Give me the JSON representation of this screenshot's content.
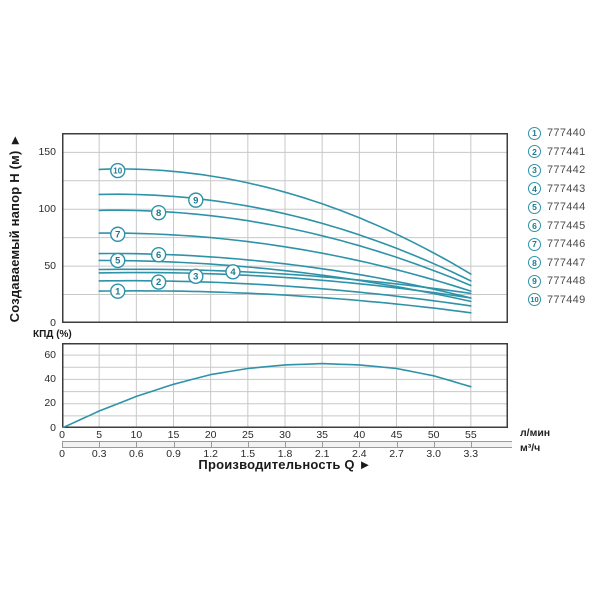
{
  "labels": {
    "head_axis": "Создаваемый напор H (м) ►",
    "kpd_axis": "КПД (%)",
    "q_axis": "Производительность Q ►",
    "unit_lmin": "л/мин",
    "unit_m3h": "м³/ч"
  },
  "colors": {
    "curve": "#2e93a8",
    "grid": "#c8c8c8",
    "border": "#3d3d3d",
    "legend_circle": "#2e93a8",
    "legend_number": "#1d7a8e",
    "legend_text": "#4a4a4a"
  },
  "legend": {
    "items": [
      {
        "num": "1",
        "part": "777440"
      },
      {
        "num": "2",
        "part": "777441"
      },
      {
        "num": "3",
        "part": "777442"
      },
      {
        "num": "4",
        "part": "777443"
      },
      {
        "num": "5",
        "part": "777444"
      },
      {
        "num": "6",
        "part": "777445"
      },
      {
        "num": "7",
        "part": "777446"
      },
      {
        "num": "8",
        "part": "777447"
      },
      {
        "num": "9",
        "part": "777448"
      },
      {
        "num": "10",
        "part": "777449"
      }
    ]
  },
  "chart_data": [
    {
      "type": "line",
      "title": "Pump head curves H(Q)",
      "ylabel": "Создаваемый напор H (м)",
      "xlabel": "Производительность Q",
      "xlim_lmin": [
        0,
        60
      ],
      "ylim": [
        0,
        167
      ],
      "grid": true,
      "y_ticks": [
        "0",
        "50",
        "100",
        "150"
      ],
      "y_grid_step": 25,
      "x_ticks_lmin": [
        "0",
        "5",
        "10",
        "15",
        "20",
        "25",
        "30",
        "35",
        "40",
        "45",
        "50",
        "55"
      ],
      "x_ticks_m3h": [
        "0",
        "0.3",
        "0.6",
        "0.9",
        "1.2",
        "1.5",
        "1.8",
        "2.1",
        "2.4",
        "2.7",
        "3.0",
        "3.3"
      ],
      "series_x_lmin": [
        5,
        30,
        55
      ],
      "series": [
        {
          "curve": "1",
          "part": "777440",
          "h": [
            28,
            24.5,
            9
          ],
          "label_at": [
            7.5,
            28
          ]
        },
        {
          "curve": "2",
          "part": "777441",
          "h": [
            37,
            32.5,
            15
          ],
          "label_at": [
            13,
            36
          ]
        },
        {
          "curve": "3",
          "part": "777442",
          "h": [
            44,
            40,
            22
          ],
          "label_at": [
            18,
            41
          ]
        },
        {
          "curve": "4",
          "part": "777443",
          "h": [
            47,
            43,
            26
          ],
          "label_at": [
            23,
            45
          ]
        },
        {
          "curve": "5",
          "part": "777444",
          "h": [
            55,
            46,
            19
          ],
          "label_at": [
            7.5,
            55
          ]
        },
        {
          "curve": "6",
          "part": "777445",
          "h": [
            61,
            52,
            22
          ],
          "label_at": [
            13,
            60
          ]
        },
        {
          "curve": "7",
          "part": "777446",
          "h": [
            79,
            67,
            28
          ],
          "label_at": [
            7.5,
            78
          ]
        },
        {
          "curve": "8",
          "part": "777447",
          "h": [
            99,
            84,
            33
          ],
          "label_at": [
            13,
            97
          ]
        },
        {
          "curve": "9",
          "part": "777448",
          "h": [
            113,
            96,
            37
          ],
          "label_at": [
            18,
            108
          ]
        },
        {
          "curve": "10",
          "part": "777449",
          "h": [
            135,
            115,
            43
          ],
          "label_at": [
            7.5,
            134
          ]
        }
      ]
    },
    {
      "type": "line",
      "title": "Efficiency curve",
      "ylabel": "КПД (%)",
      "xlabel": "Производительность Q",
      "ylim": [
        0,
        70
      ],
      "grid": true,
      "y_ticks": [
        "0",
        "20",
        "40",
        "60"
      ],
      "y_grid_step": 10,
      "x_lmin": [
        0,
        5,
        10,
        15,
        20,
        25,
        30,
        35,
        40,
        45,
        50,
        55
      ],
      "values": [
        0,
        14,
        26,
        36,
        44,
        49,
        52,
        53,
        52,
        49,
        43,
        34
      ]
    }
  ]
}
